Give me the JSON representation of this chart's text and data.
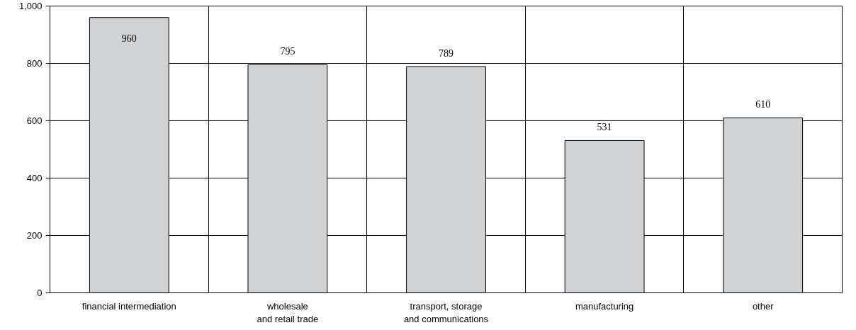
{
  "chart_data": {
    "type": "bar",
    "categories": [
      "financial intermediation",
      "wholesale\nand retail trade",
      "transport, storage\nand communications",
      "manufacturing",
      "other"
    ],
    "values": [
      960,
      795,
      789,
      531,
      610
    ],
    "color": "#d1d2d4",
    "ylim": [
      0,
      1000
    ],
    "yticks": [
      0,
      200,
      400,
      600,
      800,
      {
        "value": 1000,
        "label": "1,000"
      }
    ],
    "grid": true,
    "data_labels": true
  }
}
